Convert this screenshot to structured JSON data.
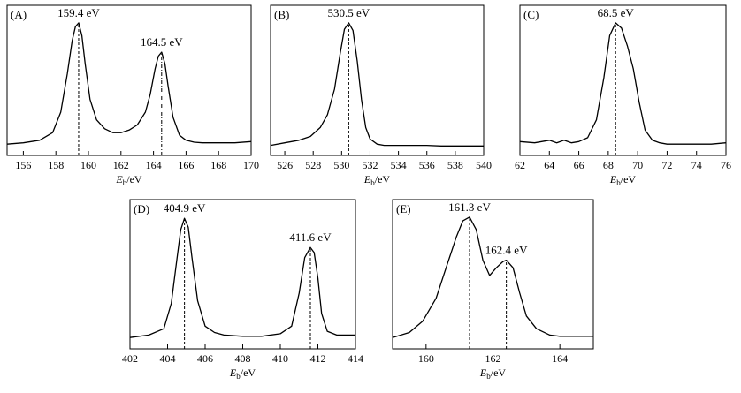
{
  "chart_data": [
    {
      "type": "line",
      "panel_label": "(A)",
      "xlabel_main": "E",
      "xlabel_sub": "b",
      "xlabel_unit": "/eV",
      "xlim": [
        155,
        170
      ],
      "ylim": [
        0,
        1
      ],
      "ticks": [
        156,
        158,
        160,
        162,
        164,
        166,
        168,
        170
      ],
      "grid": false,
      "peaks": [
        {
          "x": 159.4,
          "label": "159.4 eV",
          "style": "dashed"
        },
        {
          "x": 164.5,
          "label": "164.5 eV",
          "style": "dashdot"
        }
      ],
      "series": [
        {
          "name": "spectrum",
          "x": [
            155.0,
            156.0,
            157.0,
            157.8,
            158.3,
            158.7,
            159.0,
            159.2,
            159.4,
            159.6,
            159.8,
            160.1,
            160.5,
            161.0,
            161.5,
            162.0,
            162.5,
            163.0,
            163.5,
            163.8,
            164.1,
            164.3,
            164.5,
            164.7,
            164.9,
            165.2,
            165.6,
            166.0,
            166.5,
            167.0,
            168.0,
            169.0,
            170.0
          ],
          "y": [
            0.03,
            0.04,
            0.06,
            0.12,
            0.28,
            0.58,
            0.84,
            0.95,
            0.98,
            0.88,
            0.66,
            0.38,
            0.22,
            0.15,
            0.12,
            0.12,
            0.14,
            0.18,
            0.28,
            0.42,
            0.62,
            0.72,
            0.75,
            0.66,
            0.48,
            0.24,
            0.1,
            0.06,
            0.045,
            0.04,
            0.04,
            0.04,
            0.05
          ]
        }
      ]
    },
    {
      "type": "line",
      "panel_label": "(B)",
      "xlabel_main": "E",
      "xlabel_sub": "b",
      "xlabel_unit": "/eV",
      "xlim": [
        525,
        540
      ],
      "ylim": [
        0,
        1
      ],
      "ticks": [
        526,
        528,
        530,
        532,
        534,
        536,
        538,
        540
      ],
      "grid": false,
      "peaks": [
        {
          "x": 530.5,
          "label": "530.5 eV",
          "style": "dashed"
        }
      ],
      "series": [
        {
          "name": "spectrum",
          "x": [
            525.0,
            526.0,
            527.0,
            527.8,
            528.5,
            529.0,
            529.5,
            529.9,
            530.2,
            530.5,
            530.8,
            531.1,
            531.4,
            531.7,
            532.0,
            532.5,
            533.0,
            534.0,
            535.0,
            536.0,
            537.0,
            538.0,
            539.0,
            540.0
          ],
          "y": [
            0.02,
            0.04,
            0.06,
            0.09,
            0.16,
            0.26,
            0.46,
            0.74,
            0.93,
            0.98,
            0.92,
            0.68,
            0.38,
            0.16,
            0.07,
            0.03,
            0.02,
            0.02,
            0.02,
            0.02,
            0.015,
            0.015,
            0.015,
            0.015
          ]
        }
      ]
    },
    {
      "type": "line",
      "panel_label": "(C)",
      "xlabel_main": "E",
      "xlabel_sub": "b",
      "xlabel_unit": "/eV",
      "xlim": [
        62,
        76
      ],
      "ylim": [
        0,
        1
      ],
      "ticks": [
        62,
        64,
        66,
        68,
        70,
        72,
        74,
        76
      ],
      "grid": false,
      "peaks": [
        {
          "x": 68.5,
          "label": "68.5 eV",
          "style": "dashed"
        }
      ],
      "series": [
        {
          "name": "spectrum",
          "x": [
            62.0,
            63.0,
            64.0,
            64.5,
            65.0,
            65.5,
            66.0,
            66.6,
            67.2,
            67.7,
            68.1,
            68.5,
            68.9,
            69.3,
            69.7,
            70.1,
            70.5,
            71.0,
            71.5,
            72.0,
            73.0,
            74.0,
            75.0,
            76.0
          ],
          "y": [
            0.05,
            0.04,
            0.06,
            0.04,
            0.06,
            0.04,
            0.05,
            0.08,
            0.22,
            0.55,
            0.88,
            0.98,
            0.94,
            0.8,
            0.62,
            0.36,
            0.14,
            0.06,
            0.04,
            0.03,
            0.03,
            0.03,
            0.03,
            0.04
          ]
        }
      ]
    },
    {
      "type": "line",
      "panel_label": "(D)",
      "xlabel_main": "E",
      "xlabel_sub": "b",
      "xlabel_unit": "/eV",
      "xlim": [
        402,
        414
      ],
      "ylim": [
        0,
        1
      ],
      "ticks": [
        402,
        404,
        406,
        408,
        410,
        412,
        414
      ],
      "grid": false,
      "peaks": [
        {
          "x": 404.9,
          "label": "404.9 eV",
          "style": "dashed"
        },
        {
          "x": 411.6,
          "label": "411.6 eV",
          "style": "dashed"
        }
      ],
      "series": [
        {
          "name": "spectrum",
          "x": [
            402.0,
            403.0,
            403.8,
            404.2,
            404.5,
            404.7,
            404.9,
            405.1,
            405.3,
            405.6,
            406.0,
            406.5,
            407.0,
            408.0,
            409.0,
            410.0,
            410.6,
            411.0,
            411.3,
            411.6,
            411.8,
            412.0,
            412.2,
            412.5,
            413.0,
            414.0
          ],
          "y": [
            0.03,
            0.05,
            0.1,
            0.3,
            0.65,
            0.88,
            0.97,
            0.9,
            0.66,
            0.32,
            0.12,
            0.07,
            0.05,
            0.04,
            0.04,
            0.06,
            0.12,
            0.38,
            0.66,
            0.74,
            0.7,
            0.5,
            0.22,
            0.08,
            0.05,
            0.05
          ]
        }
      ]
    },
    {
      "type": "line",
      "panel_label": "(E)",
      "xlabel_main": "E",
      "xlabel_sub": "b",
      "xlabel_unit": "/eV",
      "xlim": [
        159,
        165
      ],
      "ylim": [
        0,
        1
      ],
      "ticks": [
        160,
        162,
        164
      ],
      "grid": false,
      "peaks": [
        {
          "x": 161.3,
          "label": "161.3 eV",
          "style": "dashed"
        },
        {
          "x": 162.4,
          "label": "162.4 eV",
          "style": "dashed"
        }
      ],
      "series": [
        {
          "name": "spectrum",
          "x": [
            159.0,
            159.5,
            159.9,
            160.3,
            160.6,
            160.9,
            161.1,
            161.3,
            161.5,
            161.7,
            161.9,
            162.1,
            162.3,
            162.4,
            162.6,
            162.8,
            163.0,
            163.3,
            163.7,
            164.0,
            164.5,
            165.0
          ],
          "y": [
            0.03,
            0.07,
            0.16,
            0.34,
            0.58,
            0.82,
            0.95,
            0.98,
            0.88,
            0.64,
            0.52,
            0.58,
            0.63,
            0.64,
            0.58,
            0.38,
            0.2,
            0.1,
            0.05,
            0.04,
            0.04,
            0.04
          ]
        }
      ]
    }
  ]
}
